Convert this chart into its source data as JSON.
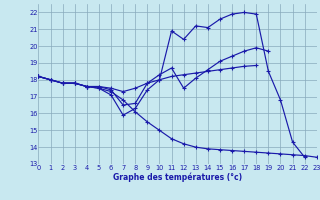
{
  "xlabel": "Graphe des températures (°c)",
  "background_color": "#c8e8f0",
  "line_color": "#1a1aaa",
  "grid_color": "#88aabc",
  "xlim": [
    0,
    23
  ],
  "ylim": [
    13,
    22.5
  ],
  "yticks": [
    13,
    14,
    15,
    16,
    17,
    18,
    19,
    20,
    21,
    22
  ],
  "xticks": [
    0,
    1,
    2,
    3,
    4,
    5,
    6,
    7,
    8,
    9,
    10,
    11,
    12,
    13,
    14,
    15,
    16,
    17,
    18,
    19,
    20,
    21,
    22,
    23
  ],
  "lines": [
    {
      "x": [
        0,
        1,
        2,
        3,
        4,
        5,
        6,
        7,
        8,
        9,
        10,
        11,
        12,
        13,
        14,
        15,
        16,
        17,
        18,
        19,
        20,
        21,
        22
      ],
      "y": [
        18.2,
        18.0,
        17.8,
        17.8,
        17.6,
        17.5,
        17.1,
        15.9,
        16.3,
        17.4,
        18.0,
        20.9,
        20.4,
        21.2,
        21.1,
        21.6,
        21.9,
        22.0,
        21.9,
        18.5,
        16.8,
        14.3,
        13.4
      ]
    },
    {
      "x": [
        0,
        1,
        2,
        3,
        4,
        5,
        6,
        7,
        8,
        9,
        10,
        11,
        12,
        13,
        14,
        15,
        16,
        17,
        18,
        19
      ],
      "y": [
        18.2,
        18.0,
        17.8,
        17.8,
        17.6,
        17.6,
        17.4,
        16.5,
        16.6,
        17.8,
        18.3,
        18.7,
        17.5,
        18.1,
        18.6,
        19.1,
        19.4,
        19.7,
        19.9,
        19.7
      ]
    },
    {
      "x": [
        0,
        1,
        2,
        3,
        4,
        5,
        6,
        7,
        8,
        9,
        10,
        11,
        12,
        13,
        14,
        15,
        16,
        17,
        18
      ],
      "y": [
        18.2,
        18.0,
        17.8,
        17.8,
        17.6,
        17.6,
        17.5,
        17.3,
        17.5,
        17.8,
        18.0,
        18.2,
        18.3,
        18.4,
        18.5,
        18.6,
        18.7,
        18.8,
        18.85
      ]
    },
    {
      "x": [
        0,
        1,
        2,
        3,
        4,
        5,
        6,
        7,
        8,
        9,
        10,
        11,
        12,
        13,
        14,
        15,
        16,
        17,
        18,
        19,
        20,
        21,
        22,
        23
      ],
      "y": [
        18.2,
        18.0,
        17.8,
        17.8,
        17.6,
        17.5,
        17.3,
        16.8,
        16.1,
        15.5,
        15.0,
        14.5,
        14.2,
        14.0,
        13.9,
        13.85,
        13.8,
        13.75,
        13.7,
        13.65,
        13.6,
        13.55,
        13.5,
        13.4
      ]
    }
  ]
}
